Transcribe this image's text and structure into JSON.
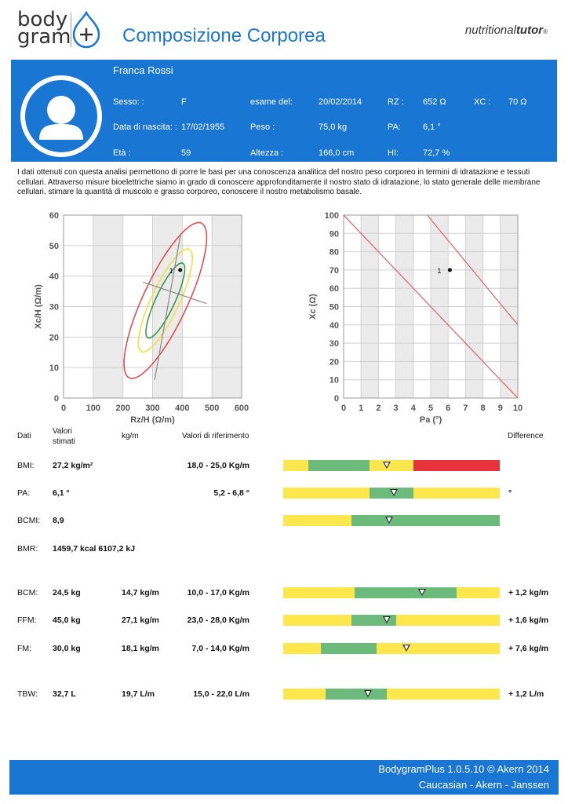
{
  "header": {
    "logo_line1": "body",
    "logo_line2": "gram",
    "title": "Composizione Corporea",
    "brand_light": "nutritional",
    "brand_bold": "tutor",
    "brand_mark": "®"
  },
  "patient": {
    "name": "Franca Rossi",
    "sex_label": "Sesso: :",
    "sex": "F",
    "exam_label": "esame del:",
    "exam_date": "20/02/2014",
    "rz_label": "RZ :",
    "rz": "652 Ω",
    "xc_label": "XC :",
    "xc": "70 Ω",
    "birth_label": "Data di nascita: :",
    "birth": "17/02/1955",
    "weight_label": "Peso :",
    "weight": "75,0 kg",
    "pa_label": "PA:",
    "pa": "6,1 °",
    "age_label": "Età :",
    "age": "59",
    "height_label": "Altezza :",
    "height": "166,0 cm",
    "hi_label": "HI:",
    "hi": "72,7 %"
  },
  "intro": "I dati ottenuti con questa analisi permettono di porre le basi per una conoscenza analitica del nostro peso corporeo in termini di idratazione e tessuti cellulari. Attraverso misure bioelettriche siamo in grado di conoscere approfonditamente il nostro stato di idratazione, lo stato generale delle membrane cellulari, stimare la quantità di muscolo e grasso corporeo, conoscere il nostro metabolismo basale.",
  "chart_data": [
    {
      "type": "scatter",
      "xlabel": "Rz/H (Ω/m)",
      "ylabel": "Xc/H (Ω/m)",
      "xlim": [
        0,
        600
      ],
      "ylim": [
        0,
        60
      ],
      "xticks": [
        "0",
        "100",
        "200",
        "300",
        "400",
        "500",
        "600"
      ],
      "yticks": [
        "0",
        "10",
        "20",
        "30",
        "40",
        "50",
        "60"
      ],
      "points": [
        {
          "label": "1",
          "x": 393,
          "y": 42
        }
      ],
      "ellipses": [
        "green",
        "yellow",
        "red"
      ]
    },
    {
      "type": "scatter",
      "xlabel": "Pa (°)",
      "ylabel": "Xc (Ω)",
      "xlim": [
        0,
        10
      ],
      "ylim": [
        0,
        100
      ],
      "xticks": [
        "0",
        "1",
        "2",
        "3",
        "4",
        "5",
        "6",
        "7",
        "8",
        "9",
        "10"
      ],
      "yticks": [
        "0",
        "10",
        "20",
        "30",
        "40",
        "50",
        "60",
        "70",
        "80",
        "90",
        "100"
      ],
      "points": [
        {
          "label": "1",
          "x": 6.1,
          "y": 70
        }
      ],
      "lines": [
        {
          "from": [
            0,
            100
          ],
          "to": [
            10,
            0
          ]
        },
        {
          "from": [
            4.8,
            100
          ],
          "to": [
            10,
            40
          ]
        }
      ]
    }
  ],
  "table": {
    "col_dati": "Dati",
    "col_valori": "Valori",
    "col_stimati": "stimati",
    "col_kgm": "kg/m",
    "col_rif": "Valori di riferimento",
    "col_diff": "Difference",
    "colors": {
      "yellow": "#fde74c",
      "green": "#6dbb7c",
      "red": "#e8323c"
    },
    "rows": [
      {
        "label": "BMI:",
        "value": "27,2 kg/m²",
        "per_m": "",
        "ref": "18,0 - 25,0 Kg/m",
        "diff": "",
        "segments": [
          [
            "yellow",
            0,
            0.115
          ],
          [
            "green",
            0.115,
            0.4
          ],
          [
            "yellow",
            0.4,
            0.6
          ],
          [
            "red",
            0.6,
            1
          ]
        ],
        "marker": 0.48
      },
      {
        "label": "PA:",
        "value": "6,1 °",
        "per_m": "",
        "ref": "5,2 - 6,8 °",
        "diff": "°",
        "segments": [
          [
            "yellow",
            0,
            0.4
          ],
          [
            "green",
            0.4,
            0.6
          ],
          [
            "yellow",
            0.6,
            1
          ]
        ],
        "marker": 0.51
      },
      {
        "label": "BCMI:",
        "value": "8,9",
        "per_m": "",
        "ref": "",
        "diff": "",
        "segments": [
          [
            "yellow",
            0,
            0.315
          ],
          [
            "green",
            0.315,
            1
          ]
        ],
        "marker": 0.49
      },
      {
        "label": "BMR:",
        "value": "1459,7 kcal 6107,2 kJ",
        "per_m": "",
        "ref": "",
        "diff": "",
        "segments": [],
        "marker": null
      },
      {
        "label": "BCM:",
        "value": "24,5 kg",
        "per_m": "14,7 kg/m",
        "ref": "10,0 - 17,0 Kg/m",
        "diff": "+ 1,2 kg/m",
        "segments": [
          [
            "yellow",
            0,
            0.33
          ],
          [
            "green",
            0.33,
            0.8
          ],
          [
            "yellow",
            0.8,
            1
          ]
        ],
        "marker": 0.64
      },
      {
        "label": "FFM:",
        "value": "45,0 kg",
        "per_m": "27,1 kg/m",
        "ref": "23,0 - 28,0 Kg/m",
        "diff": "+ 1,6 kg/m",
        "segments": [
          [
            "yellow",
            0,
            0.315
          ],
          [
            "green",
            0.315,
            0.52
          ],
          [
            "yellow",
            0.52,
            1
          ]
        ],
        "marker": 0.48
      },
      {
        "label": "FM:",
        "value": "30,0 kg",
        "per_m": "18,1 kg/m",
        "ref": "7,0 - 14,0 Kg/m",
        "diff": "+ 7,6 kg/m",
        "segments": [
          [
            "yellow",
            0,
            0.175
          ],
          [
            "green",
            0.175,
            0.43
          ],
          [
            "yellow",
            0.43,
            1
          ]
        ],
        "marker": 0.57
      },
      {
        "label": "TBW:",
        "value": "32,7 L",
        "per_m": "19,7 L/m",
        "ref": "15,0 - 22,0 L/m",
        "diff": "+ 1,2 L/m",
        "segments": [
          [
            "yellow",
            0,
            0.195
          ],
          [
            "green",
            0.195,
            0.48
          ],
          [
            "yellow",
            0.48,
            1
          ]
        ],
        "marker": 0.39
      }
    ]
  },
  "footer": {
    "line1": "BodygramPlus 1.0.5.10    © Akern 2014",
    "line2": "Caucasian - Akern - Janssen"
  }
}
